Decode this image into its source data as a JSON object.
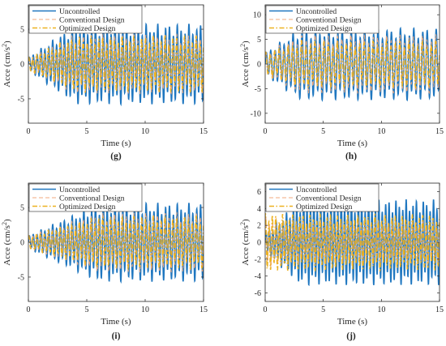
{
  "colors": {
    "uncontrolled": "#1f77c0",
    "conventional": "#f0a87c",
    "optimized": "#edb120",
    "axis": "#262626"
  },
  "chart_data": [
    {
      "type": "line",
      "panel_label": "(g)",
      "xlabel": "Time (s)",
      "ylabel": "Acce (cm/s",
      "ylabel_sup": "2",
      "ylabel_tail": ")",
      "xlim": [
        0,
        15
      ],
      "ylim": [
        -8.5,
        8.5
      ],
      "xticks": [
        0,
        5,
        10,
        15
      ],
      "yticks": [
        -5,
        0,
        5
      ],
      "grid": false,
      "legend_position": "top-left",
      "series": [
        {
          "name": "Uncontrolled",
          "style": "solid",
          "color": "#1f77c0",
          "amplitude_start": 0.8,
          "amplitude_end": 4.9,
          "ramp_seconds": 4,
          "frequency_hz": 3.0,
          "phase": 0.0
        },
        {
          "name": "Conventional Design",
          "style": "dashed",
          "color": "#f0a87c",
          "amplitude_start": 0.8,
          "amplitude_end": 3.6,
          "ramp_seconds": 4,
          "frequency_hz": 3.0,
          "phase": 0.5
        },
        {
          "name": "Optimized Design",
          "style": "dashdot",
          "color": "#edb120",
          "amplitude_start": 0.8,
          "amplitude_end": 3.4,
          "ramp_seconds": 4,
          "frequency_hz": 3.0,
          "phase": 1.0
        }
      ]
    },
    {
      "type": "line",
      "panel_label": "(h)",
      "xlabel": "Time (s)",
      "ylabel": "Acce (cm/s",
      "ylabel_sup": "2",
      "ylabel_tail": ")",
      "xlim": [
        0,
        15
      ],
      "ylim": [
        -12,
        12
      ],
      "xticks": [
        0,
        5,
        10,
        15
      ],
      "yticks": [
        -10,
        -5,
        0,
        5,
        10
      ],
      "grid": false,
      "legend_position": "top-left",
      "series": [
        {
          "name": "Uncontrolled",
          "style": "solid",
          "color": "#1f77c0",
          "amplitude_start": 2.0,
          "amplitude_end": 6.2,
          "ramp_seconds": 3,
          "frequency_hz": 2.6,
          "phase": 0.0
        },
        {
          "name": "Conventional Design",
          "style": "dashed",
          "color": "#f0a87c",
          "amplitude_start": 2.0,
          "amplitude_end": 5.0,
          "ramp_seconds": 3,
          "frequency_hz": 2.6,
          "phase": 0.4
        },
        {
          "name": "Optimized Design",
          "style": "dashdot",
          "color": "#edb120",
          "amplitude_start": 2.0,
          "amplitude_end": 4.0,
          "ramp_seconds": 3,
          "frequency_hz": 2.6,
          "phase": 0.8
        }
      ]
    },
    {
      "type": "line",
      "panel_label": "(i)",
      "xlabel": "Time (s)",
      "ylabel": "Acce (cm/s",
      "ylabel_sup": "2",
      "ylabel_tail": ")",
      "xlim": [
        0,
        15
      ],
      "ylim": [
        -8.5,
        8.5
      ],
      "xticks": [
        0,
        5,
        10,
        15
      ],
      "yticks": [
        -5,
        0,
        5
      ],
      "grid": false,
      "legend_position": "top-left",
      "series": [
        {
          "name": "Uncontrolled",
          "style": "solid",
          "color": "#1f77c0",
          "amplitude_start": 0.8,
          "amplitude_end": 4.8,
          "ramp_seconds": 6,
          "frequency_hz": 3.0,
          "phase": 0.0
        },
        {
          "name": "Conventional Design",
          "style": "dashed",
          "color": "#f0a87c",
          "amplitude_start": 0.8,
          "amplitude_end": 3.6,
          "ramp_seconds": 6,
          "frequency_hz": 3.0,
          "phase": 0.5
        },
        {
          "name": "Optimized Design",
          "style": "dashdot",
          "color": "#edb120",
          "amplitude_start": 0.8,
          "amplitude_end": 3.2,
          "ramp_seconds": 6,
          "frequency_hz": 3.0,
          "phase": 1.0
        }
      ]
    },
    {
      "type": "line",
      "panel_label": "(j)",
      "xlabel": "Time (s)",
      "ylabel": "Acce (cm/s",
      "ylabel_sup": "2",
      "ylabel_tail": ")",
      "xlim": [
        0,
        15
      ],
      "ylim": [
        -7,
        7
      ],
      "xticks": [
        0,
        5,
        10,
        15
      ],
      "yticks": [
        -6,
        -4,
        -2,
        0,
        2,
        4,
        6
      ],
      "grid": false,
      "legend_position": "top-left",
      "series": [
        {
          "name": "Uncontrolled",
          "style": "solid",
          "color": "#1f77c0",
          "amplitude_start": 1.0,
          "amplitude_end": 4.3,
          "ramp_seconds": 3,
          "frequency_hz": 3.4,
          "phase": 0.0
        },
        {
          "name": "Conventional Design",
          "style": "dashed",
          "color": "#f0a87c",
          "amplitude_start": 2.6,
          "amplitude_end": 2.3,
          "ramp_seconds": 2,
          "frequency_hz": 3.4,
          "phase": 0.5
        },
        {
          "name": "Optimized Design",
          "style": "dashdot",
          "color": "#edb120",
          "amplitude_start": 3.0,
          "amplitude_end": 2.8,
          "ramp_seconds": 2,
          "frequency_hz": 3.4,
          "phase": 1.0
        }
      ]
    }
  ]
}
